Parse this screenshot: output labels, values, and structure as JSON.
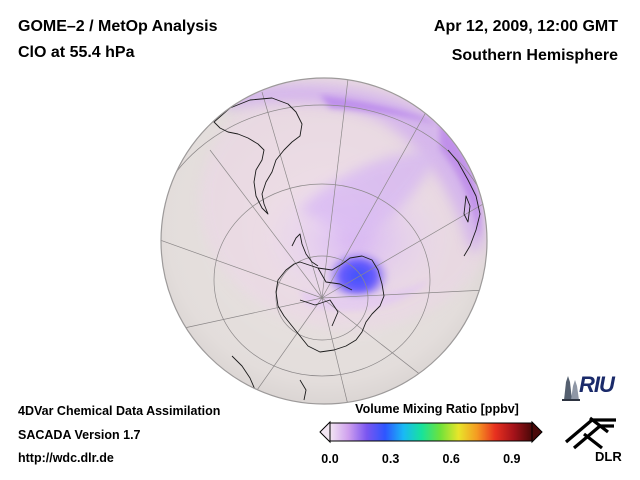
{
  "header": {
    "title": "GOME–2 / MetOp Analysis",
    "subtitle": "ClO at 55.4 hPa",
    "datetime": "Apr 12, 2009, 12:00 GMT",
    "hemisphere": "Southern Hemisphere"
  },
  "footer": {
    "line1": "4DVar Chemical Data Assimilation",
    "line2": "SACADA Version 1.7",
    "line3": "http://wdc.dlr.de"
  },
  "colorbar": {
    "title": "Volume Mixing Ratio [ppbv]",
    "ticks": [
      "0.0",
      "0.3",
      "0.6",
      "0.9"
    ],
    "tick_values": [
      0.0,
      0.3,
      0.6,
      0.9
    ],
    "range": [
      0.0,
      1.0
    ],
    "colors": [
      "#f3e6f3",
      "#cfa0ee",
      "#7a56f0",
      "#2e56ff",
      "#19b9f5",
      "#17e39b",
      "#6fe23a",
      "#e8e52a",
      "#f59b22",
      "#e8301f",
      "#a5131a",
      "#4a0808"
    ]
  },
  "logos": {
    "riu": "RIU",
    "dlr": "DLR"
  },
  "map": {
    "projection": "orthographic, Southern Hemisphere",
    "background": "#eae4e2",
    "field": "#e9ccf6",
    "enhanced": "#c58ef3",
    "peak": "#3f54ff"
  }
}
